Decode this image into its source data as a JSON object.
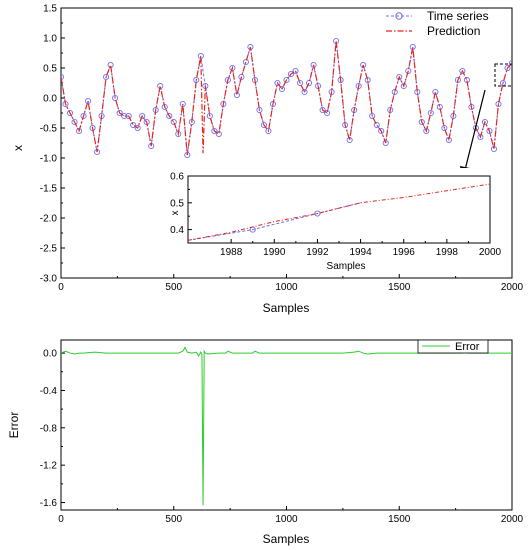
{
  "chart_data": [
    {
      "type": "line",
      "xlabel": "Samples",
      "ylabel": "x",
      "xlim": [
        0,
        2000
      ],
      "ylim": [
        -3.0,
        1.5
      ],
      "x_ticks": [
        0,
        500,
        1000,
        1500,
        2000
      ],
      "x_tick_labels": [
        "0",
        "500",
        "1000",
        "1500",
        "2000"
      ],
      "y_ticks": [
        1.5,
        1.0,
        0.5,
        0.0,
        -0.5,
        -1.0,
        -1.5,
        -2.0,
        -2.5,
        -3.0
      ],
      "y_tick_labels": [
        "1.5",
        "1.0",
        "0.5",
        "0.0",
        "-0.5",
        "-1.0",
        "-1.5",
        "-2.0",
        "-2.5",
        "-3.0"
      ],
      "legend_position": "top-right",
      "colors": {
        "time_series": "#6f6ff0",
        "prediction": "#e8261e"
      },
      "series": [
        {
          "name": "Time series",
          "style": "dashed line with circle markers",
          "x": [
            0,
            20,
            40,
            60,
            80,
            100,
            120,
            140,
            160,
            180,
            200,
            220,
            240,
            260,
            280,
            300,
            320,
            340,
            360,
            380,
            400,
            420,
            440,
            460,
            480,
            500,
            520,
            540,
            560,
            580,
            600,
            620,
            640,
            660,
            680,
            700,
            720,
            740,
            760,
            780,
            800,
            820,
            840,
            860,
            880,
            900,
            920,
            940,
            960,
            980,
            1000,
            1020,
            1040,
            1060,
            1080,
            1100,
            1120,
            1140,
            1160,
            1180,
            1200,
            1220,
            1240,
            1260,
            1280,
            1300,
            1320,
            1340,
            1360,
            1380,
            1400,
            1420,
            1440,
            1460,
            1480,
            1500,
            1520,
            1540,
            1560,
            1580,
            1600,
            1620,
            1640,
            1660,
            1680,
            1700,
            1720,
            1740,
            1760,
            1780,
            1800,
            1820,
            1840,
            1860,
            1880,
            1900,
            1920,
            1940,
            1960,
            1980,
            2000
          ],
          "values": [
            0.35,
            -0.1,
            -0.25,
            -0.4,
            -0.55,
            -0.3,
            -0.05,
            -0.5,
            -0.9,
            -0.3,
            0.35,
            0.55,
            0.0,
            -0.25,
            -0.3,
            -0.3,
            -0.45,
            -0.5,
            -0.3,
            -0.4,
            -0.8,
            -0.2,
            0.2,
            -0.15,
            -0.3,
            -0.4,
            -0.6,
            -0.1,
            -0.95,
            -0.4,
            0.3,
            0.7,
            0.2,
            -0.3,
            -0.55,
            -0.6,
            -0.1,
            0.3,
            0.5,
            0.05,
            0.35,
            0.6,
            0.85,
            0.3,
            -0.2,
            -0.45,
            -0.55,
            -0.1,
            0.25,
            0.15,
            0.3,
            0.4,
            0.45,
            0.25,
            0.1,
            0.25,
            0.55,
            0.2,
            -0.2,
            -0.25,
            0.1,
            0.95,
            0.3,
            -0.45,
            -0.7,
            -0.2,
            0.2,
            0.55,
            0.3,
            -0.3,
            -0.45,
            -0.55,
            -0.75,
            -0.2,
            0.1,
            0.35,
            0.2,
            0.45,
            0.85,
            0.1,
            -0.4,
            -0.55,
            -0.25,
            0.1,
            -0.15,
            -0.5,
            -0.7,
            -0.3,
            0.3,
            0.45,
            0.3,
            -0.15,
            -0.5,
            -0.65,
            -0.4,
            -0.55,
            -0.85,
            -0.1,
            0.25,
            0.5,
            0.58
          ]
        },
        {
          "name": "Prediction",
          "style": "dash-dot line",
          "x": [
            0,
            20,
            40,
            60,
            80,
            100,
            120,
            140,
            160,
            180,
            200,
            220,
            240,
            260,
            280,
            300,
            320,
            340,
            360,
            380,
            400,
            420,
            440,
            460,
            480,
            500,
            520,
            540,
            560,
            580,
            600,
            620,
            630,
            640,
            660,
            680,
            700,
            720,
            740,
            760,
            780,
            800,
            820,
            840,
            860,
            880,
            900,
            920,
            940,
            960,
            980,
            1000,
            1020,
            1040,
            1060,
            1080,
            1100,
            1120,
            1140,
            1160,
            1180,
            1200,
            1220,
            1240,
            1260,
            1280,
            1300,
            1320,
            1340,
            1360,
            1380,
            1400,
            1420,
            1440,
            1460,
            1480,
            1500,
            1520,
            1540,
            1560,
            1580,
            1600,
            1620,
            1640,
            1660,
            1680,
            1700,
            1720,
            1740,
            1760,
            1780,
            1800,
            1820,
            1840,
            1860,
            1880,
            1900,
            1920,
            1940,
            1960,
            1980,
            2000
          ],
          "values": [
            0.35,
            -0.1,
            -0.25,
            -0.4,
            -0.55,
            -0.3,
            -0.05,
            -0.5,
            -0.9,
            -0.3,
            0.35,
            0.55,
            0.0,
            -0.25,
            -0.3,
            -0.3,
            -0.45,
            -0.5,
            -0.3,
            -0.4,
            -0.8,
            -0.2,
            0.2,
            -0.15,
            -0.3,
            -0.4,
            -0.6,
            -0.1,
            -0.95,
            -0.4,
            0.3,
            0.7,
            -0.92,
            0.2,
            -0.3,
            -0.55,
            -0.6,
            -0.1,
            0.3,
            0.5,
            0.05,
            0.35,
            0.6,
            0.85,
            0.3,
            -0.2,
            -0.45,
            -0.55,
            -0.1,
            0.25,
            0.15,
            0.3,
            0.4,
            0.45,
            0.25,
            0.1,
            0.25,
            0.55,
            0.2,
            -0.2,
            -0.25,
            0.1,
            0.95,
            0.3,
            -0.45,
            -0.7,
            -0.2,
            0.2,
            0.55,
            0.3,
            -0.3,
            -0.45,
            -0.55,
            -0.75,
            -0.2,
            0.1,
            0.35,
            0.2,
            0.45,
            0.85,
            0.1,
            -0.4,
            -0.55,
            -0.25,
            0.1,
            -0.15,
            -0.5,
            -0.7,
            -0.3,
            0.3,
            0.45,
            0.3,
            -0.15,
            -0.5,
            -0.65,
            -0.4,
            -0.55,
            -0.85,
            -0.1,
            0.25,
            0.5,
            0.58
          ]
        }
      ],
      "inset": {
        "type": "line",
        "xlabel": "Samples",
        "ylabel": "x",
        "xlim": [
          1986,
          2000
        ],
        "ylim": [
          0.35,
          0.6
        ],
        "x_ticks": [
          1988,
          1990,
          1992,
          1994,
          1996,
          1998,
          2000
        ],
        "x_tick_labels": [
          "1988",
          "1990",
          "1992",
          "1994",
          "1996",
          "1998",
          "2000"
        ],
        "y_ticks": [
          0.4,
          0.5,
          0.6
        ],
        "y_tick_labels": [
          "0.4",
          "0.5",
          "0.6"
        ],
        "series": [
          {
            "name": "Time series",
            "x": [
              1986,
              1989,
              1992,
              1994
            ],
            "values": [
              0.36,
              0.4,
              0.46,
              0.5
            ]
          },
          {
            "name": "Prediction",
            "x": [
              1986,
              1988,
              1990,
              1992,
              1994,
              1996,
              1998,
              2000
            ],
            "values": [
              0.36,
              0.39,
              0.43,
              0.46,
              0.5,
              0.52,
              0.545,
              0.57
            ]
          }
        ]
      }
    },
    {
      "type": "line",
      "xlabel": "Samples",
      "ylabel": "Error",
      "xlim": [
        0,
        2000
      ],
      "ylim": [
        -1.68,
        0.14
      ],
      "x_ticks": [
        0,
        500,
        1000,
        1500,
        2000
      ],
      "x_tick_labels": [
        "0",
        "500",
        "1000",
        "1500",
        "2000"
      ],
      "y_ticks": [
        0.0,
        -0.4,
        -0.8,
        -1.2,
        -1.6
      ],
      "y_tick_labels": [
        "0.0",
        "-0.4",
        "-0.8",
        "-1.2",
        "-1.6"
      ],
      "legend_position": "top-right",
      "colors": {
        "error": "#2ecc2e"
      },
      "series": [
        {
          "name": "Error",
          "x": [
            0,
            20,
            40,
            60,
            80,
            100,
            150,
            200,
            250,
            300,
            350,
            400,
            450,
            500,
            520,
            540,
            550,
            560,
            580,
            600,
            610,
            620,
            625,
            630,
            635,
            640,
            650,
            700,
            730,
            740,
            760,
            800,
            850,
            860,
            880,
            900,
            950,
            1000,
            1050,
            1100,
            1150,
            1200,
            1250,
            1300,
            1320,
            1340,
            1360,
            1400,
            1450,
            1500,
            1550,
            1600,
            1650,
            1700,
            1750,
            1780,
            1790,
            1800,
            1850,
            1900,
            1950,
            2000
          ],
          "values": [
            0.0,
            0.02,
            0.0,
            -0.01,
            0.0,
            0.0,
            0.01,
            0.0,
            0.0,
            0.0,
            0.0,
            0.0,
            0.0,
            0.0,
            0.0,
            0.02,
            0.06,
            0.01,
            0.0,
            0.01,
            -0.03,
            0.01,
            -0.02,
            -1.63,
            0.02,
            0.0,
            -0.01,
            0.0,
            0.0,
            0.02,
            0.0,
            0.0,
            0.0,
            0.02,
            0.0,
            0.0,
            0.0,
            0.0,
            0.0,
            0.0,
            0.0,
            0.0,
            0.0,
            0.01,
            0.02,
            0.0,
            -0.01,
            0.0,
            0.0,
            0.0,
            0.0,
            0.0,
            0.0,
            0.0,
            0.0,
            0.0,
            0.02,
            0.0,
            0.0,
            0.0,
            0.0,
            0.0
          ]
        }
      ]
    }
  ]
}
